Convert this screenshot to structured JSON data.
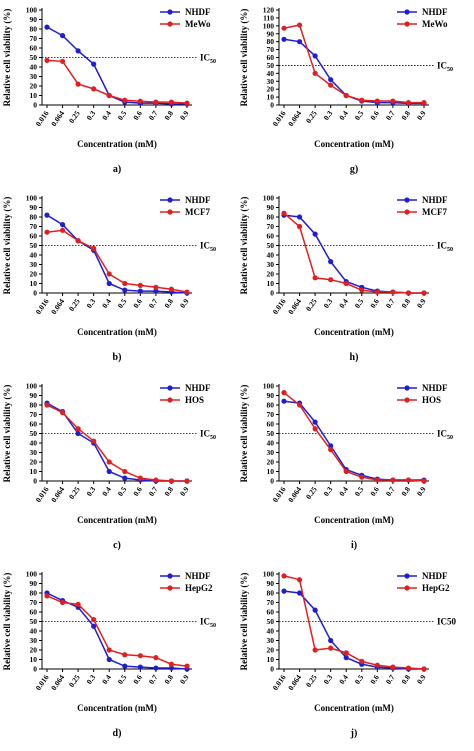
{
  "chart_data": [
    {
      "type": "line",
      "label": "a)",
      "xlabel": "Concentration (mM)",
      "ylabel": "Relative cell viability (%)",
      "categories": [
        "0.016",
        "0.064",
        "0.25",
        "0.3",
        "0.4",
        "0.5",
        "0.6",
        "0.7",
        "0.8",
        "0.9"
      ],
      "series": [
        {
          "name": "NHDF",
          "color": "#1f1fd0",
          "values": [
            82,
            73,
            57,
            43,
            10,
            3,
            2,
            2,
            1,
            1
          ]
        },
        {
          "name": "MeWo",
          "color": "#e02020",
          "values": [
            47,
            46,
            22,
            17,
            10,
            5,
            4,
            3,
            3,
            2
          ]
        }
      ],
      "ylim": [
        0,
        100
      ],
      "yticks": [
        0,
        10,
        20,
        30,
        40,
        50,
        60,
        70,
        80,
        90,
        100
      ],
      "reference_line": {
        "value": 50,
        "label": "IC",
        "label_sub": "50"
      },
      "legend": "upper right"
    },
    {
      "type": "line",
      "label": "g)",
      "xlabel": "Concentration (mM)",
      "ylabel": "Relative cell viability (%)",
      "categories": [
        "0.016",
        "0.064",
        "0.25",
        "0.3",
        "0.4",
        "0.5",
        "0.6",
        "0.7",
        "0.8",
        "0.9"
      ],
      "series": [
        {
          "name": "NHDF",
          "color": "#1f1fd0",
          "values": [
            83,
            80,
            62,
            32,
            12,
            5,
            3,
            3,
            2,
            2
          ]
        },
        {
          "name": "MeWo",
          "color": "#e02020",
          "values": [
            97,
            101,
            40,
            25,
            12,
            6,
            5,
            5,
            3,
            3
          ]
        }
      ],
      "ylim": [
        0,
        120
      ],
      "yticks": [
        0,
        10,
        20,
        30,
        40,
        50,
        60,
        70,
        80,
        90,
        100,
        110,
        120
      ],
      "reference_line": {
        "value": 50,
        "label": "IC",
        "label_sub": "50"
      },
      "legend": "upper right"
    },
    {
      "type": "line",
      "label": "b)",
      "xlabel": "Concentration (mM)",
      "ylabel": "Relative cell viability (%)",
      "categories": [
        "0.016",
        "0.064",
        "0.25",
        "0.3",
        "0.4",
        "0.5",
        "0.6",
        "0.7",
        "0.8",
        "0.9"
      ],
      "series": [
        {
          "name": "NHDF",
          "color": "#1f1fd0",
          "values": [
            82,
            72,
            55,
            45,
            10,
            3,
            2,
            2,
            1,
            0
          ]
        },
        {
          "name": "MCF7",
          "color": "#e02020",
          "values": [
            64,
            66,
            55,
            47,
            20,
            10,
            8,
            6,
            4,
            1
          ]
        }
      ],
      "ylim": [
        0,
        100
      ],
      "yticks": [
        0,
        10,
        20,
        30,
        40,
        50,
        60,
        70,
        80,
        90,
        100
      ],
      "reference_line": {
        "value": 50,
        "label": "IC",
        "label_sub": "50"
      },
      "legend": "upper right"
    },
    {
      "type": "line",
      "label": "h)",
      "xlabel": "Concentration (mM)",
      "ylabel": "Relative cell viability (%)",
      "categories": [
        "0.016",
        "0.064",
        "0.25",
        "0.3",
        "0.4",
        "0.5",
        "0.6",
        "0.7",
        "0.8",
        "0.9"
      ],
      "series": [
        {
          "name": "NHDF",
          "color": "#1f1fd0",
          "values": [
            82,
            80,
            62,
            33,
            12,
            6,
            2,
            1,
            0,
            0
          ]
        },
        {
          "name": "MCF7",
          "color": "#e02020",
          "values": [
            84,
            70,
            16,
            14,
            10,
            3,
            1,
            1,
            0,
            0
          ]
        }
      ],
      "ylim": [
        0,
        100
      ],
      "yticks": [
        0,
        10,
        20,
        30,
        40,
        50,
        60,
        70,
        80,
        90,
        100
      ],
      "reference_line": {
        "value": 50,
        "label": "IC",
        "label_sub": "50"
      },
      "legend": "upper right"
    },
    {
      "type": "line",
      "label": "c)",
      "xlabel": "Concentration (mM)",
      "ylabel": "Relative cell viability (%)",
      "categories": [
        "0.016",
        "0.064",
        "0.25",
        "0.3",
        "0.4",
        "0.5",
        "0.6",
        "0.7",
        "0.8",
        "0.9"
      ],
      "series": [
        {
          "name": "NHDF",
          "color": "#1f1fd0",
          "values": [
            82,
            73,
            50,
            40,
            10,
            3,
            1,
            0,
            0,
            0
          ]
        },
        {
          "name": "HOS",
          "color": "#e02020",
          "values": [
            80,
            72,
            55,
            42,
            20,
            10,
            3,
            1,
            0,
            0
          ]
        }
      ],
      "ylim": [
        0,
        100
      ],
      "yticks": [
        0,
        10,
        20,
        30,
        40,
        50,
        60,
        70,
        80,
        90,
        100
      ],
      "reference_line": {
        "value": 50,
        "label": "IC",
        "label_sub": "50"
      },
      "legend": "upper right"
    },
    {
      "type": "line",
      "label": "i)",
      "xlabel": "Concentration (mM)",
      "ylabel": "Relative cell viability (%)",
      "categories": [
        "0.016",
        "0.064",
        "0.25",
        "0.3",
        "0.4",
        "0.5",
        "0.6",
        "0.7",
        "0.8",
        "0.9"
      ],
      "series": [
        {
          "name": "NHDF",
          "color": "#1f1fd0",
          "values": [
            84,
            82,
            62,
            37,
            12,
            6,
            2,
            1,
            1,
            1
          ]
        },
        {
          "name": "HOS",
          "color": "#e02020",
          "values": [
            93,
            80,
            55,
            33,
            10,
            4,
            1,
            1,
            1,
            0
          ]
        }
      ],
      "ylim": [
        0,
        100
      ],
      "yticks": [
        0,
        10,
        20,
        30,
        40,
        50,
        60,
        70,
        80,
        90,
        100
      ],
      "reference_line": {
        "value": 50,
        "label": "IC",
        "label_sub": "50"
      },
      "legend": "upper right"
    },
    {
      "type": "line",
      "label": "d)",
      "xlabel": "Concentration (mM)",
      "ylabel": "Relative cell viability (%)",
      "categories": [
        "0.016",
        "0.064",
        "0.25",
        "0.3",
        "0.4",
        "0.5",
        "0.6",
        "0.7",
        "0.8",
        "0.9"
      ],
      "series": [
        {
          "name": "NHDF",
          "color": "#1f1fd0",
          "values": [
            80,
            72,
            65,
            45,
            10,
            3,
            2,
            1,
            1,
            0
          ]
        },
        {
          "name": "HepG2",
          "color": "#e02020",
          "values": [
            77,
            70,
            68,
            52,
            20,
            15,
            14,
            12,
            5,
            3
          ]
        }
      ],
      "ylim": [
        0,
        100
      ],
      "yticks": [
        0,
        10,
        20,
        30,
        40,
        50,
        60,
        70,
        80,
        90,
        100
      ],
      "reference_line": {
        "value": 50,
        "label": "IC",
        "label_sub": "50"
      },
      "legend": "upper right"
    },
    {
      "type": "line",
      "label": "j)",
      "xlabel": "Concentration (mM)",
      "ylabel": "Relative cell viability (%)",
      "categories": [
        "0.016",
        "0.064",
        "0.25",
        "0.3",
        "0.4",
        "0.5",
        "0.6",
        "0.7",
        "0.8",
        "0.9"
      ],
      "series": [
        {
          "name": "NHDF",
          "color": "#1f1fd0",
          "values": [
            82,
            80,
            62,
            30,
            12,
            5,
            2,
            1,
            0,
            0
          ]
        },
        {
          "name": "HepG2",
          "color": "#e02020",
          "values": [
            98,
            94,
            20,
            22,
            17,
            8,
            4,
            2,
            1,
            0
          ]
        }
      ],
      "ylim": [
        0,
        100
      ],
      "yticks": [
        0,
        10,
        20,
        30,
        40,
        50,
        60,
        70,
        80,
        90,
        100
      ],
      "reference_line": {
        "value": 50,
        "label": "IC50"
      },
      "legend": "upper right"
    }
  ]
}
